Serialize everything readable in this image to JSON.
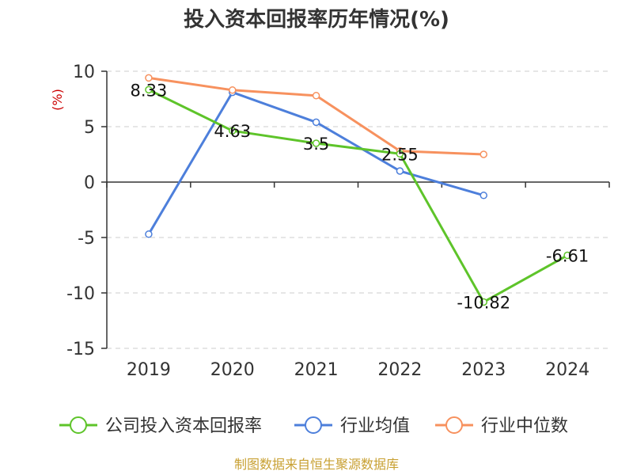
{
  "chart_data": {
    "type": "line",
    "title": "投入资本回报率历年情况(%)",
    "ylabel": "(%)",
    "categories": [
      "2019",
      "2020",
      "2021",
      "2022",
      "2023",
      "2024"
    ],
    "ylim": [
      -15,
      10
    ],
    "yticks": [
      10,
      5,
      0,
      -5,
      -10,
      -15
    ],
    "grid": true,
    "legend_position": "bottom",
    "series": [
      {
        "name": "公司投入资本回报率",
        "color": "#5ec42a",
        "values": [
          8.33,
          4.63,
          3.5,
          2.55,
          -10.82,
          -6.61
        ],
        "labels": [
          "8.33",
          "4.63",
          "3.5",
          "2.55",
          "-10.82",
          "-6.61"
        ]
      },
      {
        "name": "行业均值",
        "color": "#4d7fdb",
        "values": [
          -4.7,
          8.1,
          5.4,
          1.0,
          -1.2,
          null
        ]
      },
      {
        "name": "行业中位数",
        "color": "#f7915e",
        "values": [
          9.4,
          8.3,
          7.8,
          2.8,
          2.5,
          null
        ]
      }
    ]
  },
  "colors": {
    "ylabel": "#cc0000",
    "source": "#c8a032",
    "axis": "#333333",
    "grid": "#cccccc"
  },
  "source": "制图数据来自恒生聚源数据库"
}
